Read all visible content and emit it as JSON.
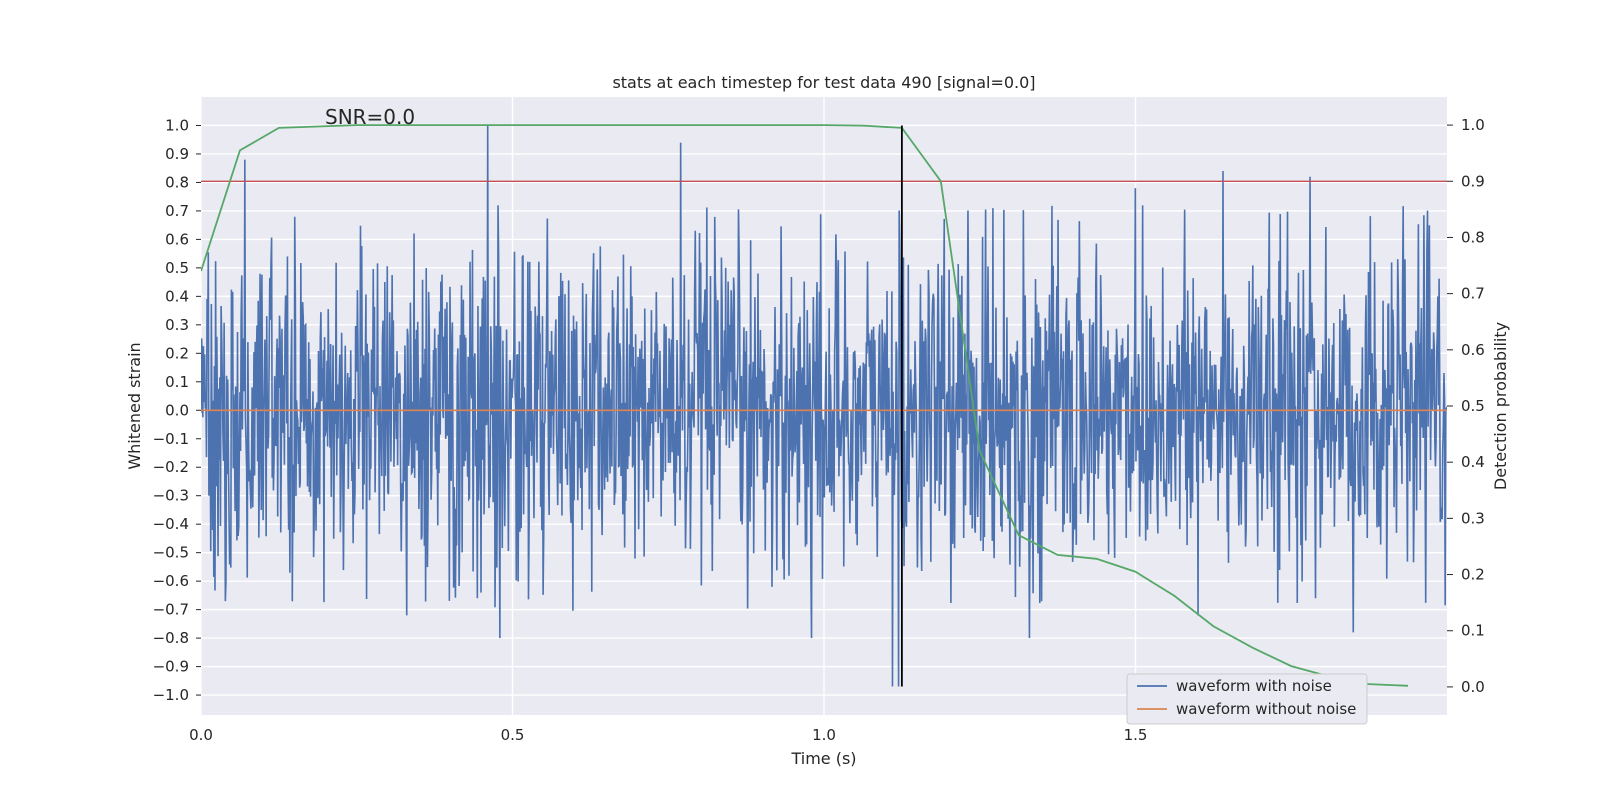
{
  "chart_data": {
    "type": "line",
    "title": "stats at each timestep for test data 490 [signal=0.0]",
    "xlabel": "Time (s)",
    "ylabel": "Whitened strain",
    "ylabel_right": "Detection probability",
    "annotation": "SNR=0.0",
    "xlim": [
      0.0,
      2.0
    ],
    "ylim": [
      -1.07,
      1.1
    ],
    "ylim_right": [
      -0.05,
      1.05
    ],
    "x_ticks": [
      0.0,
      0.5,
      1.0,
      1.5
    ],
    "x_tick_labels": [
      "0.0",
      "0.5",
      "1.0",
      "1.5"
    ],
    "y_ticks": [
      -1.0,
      -0.9,
      -0.8,
      -0.7,
      -0.6,
      -0.5,
      -0.4,
      -0.3,
      -0.2,
      -0.1,
      0.0,
      0.1,
      0.2,
      0.3,
      0.4,
      0.5,
      0.6,
      0.7,
      0.8,
      0.9,
      1.0
    ],
    "y_tick_labels": [
      "−1.0",
      "−0.9",
      "−0.8",
      "−0.7",
      "−0.6",
      "−0.5",
      "−0.4",
      "−0.3",
      "−0.2",
      "−0.1",
      "0.0",
      "0.1",
      "0.2",
      "0.3",
      "0.4",
      "0.5",
      "0.6",
      "0.7",
      "0.8",
      "0.9",
      "1.0"
    ],
    "y_right_ticks": [
      0.0,
      0.1,
      0.2,
      0.3,
      0.4,
      0.5,
      0.6,
      0.7,
      0.8,
      0.9,
      1.0
    ],
    "y_right_tick_labels": [
      "0.0",
      "0.1",
      "0.2",
      "0.3",
      "0.4",
      "0.5",
      "0.6",
      "0.7",
      "0.8",
      "0.9",
      "1.0"
    ],
    "threshold_right": 0.9,
    "vline_x": 1.125,
    "vline_range": [
      -0.97,
      1.0
    ],
    "series": [
      {
        "name": "waveform with noise",
        "color": "#4c72b0",
        "axis": "left",
        "samples": 2048,
        "noise_std": 0.28,
        "peaks": [
          [
            0.07,
            0.88
          ],
          [
            0.46,
            1.0
          ],
          [
            0.77,
            0.94
          ],
          [
            1.11,
            -0.97
          ],
          [
            1.12,
            -0.97
          ],
          [
            1.5,
            0.78
          ],
          [
            1.64,
            0.84
          ],
          [
            1.78,
            0.82
          ],
          [
            0.48,
            -0.8
          ],
          [
            0.98,
            -0.8
          ],
          [
            1.33,
            -0.8
          ],
          [
            0.33,
            -0.72
          ],
          [
            1.6,
            -0.72
          ],
          [
            1.85,
            -0.78
          ]
        ]
      },
      {
        "name": "waveform without noise",
        "color": "#dd8452",
        "axis": "left",
        "value": 0.0
      },
      {
        "name": "detection probability",
        "color": "#55a868",
        "axis": "right",
        "x": [
          0.0,
          0.0625,
          0.125,
          0.25,
          0.375,
          0.5,
          0.625,
          0.75,
          0.875,
          1.0,
          1.0625,
          1.125,
          1.1875,
          1.25,
          1.3125,
          1.375,
          1.4375,
          1.5,
          1.5625,
          1.625,
          1.6875,
          1.75,
          1.8125,
          1.875,
          1.9375
        ],
        "values": [
          0.74,
          0.955,
          0.995,
          1.0,
          1.0,
          1.0,
          1.0,
          1.0,
          1.0,
          1.0,
          0.999,
          0.995,
          0.9,
          0.42,
          0.27,
          0.235,
          0.228,
          0.205,
          0.162,
          0.108,
          0.07,
          0.037,
          0.018,
          0.005,
          0.002
        ]
      }
    ],
    "threshold_color": "#c44e52",
    "legend": [
      "waveform with noise",
      "waveform without noise"
    ],
    "legend_position": "lower-right"
  }
}
